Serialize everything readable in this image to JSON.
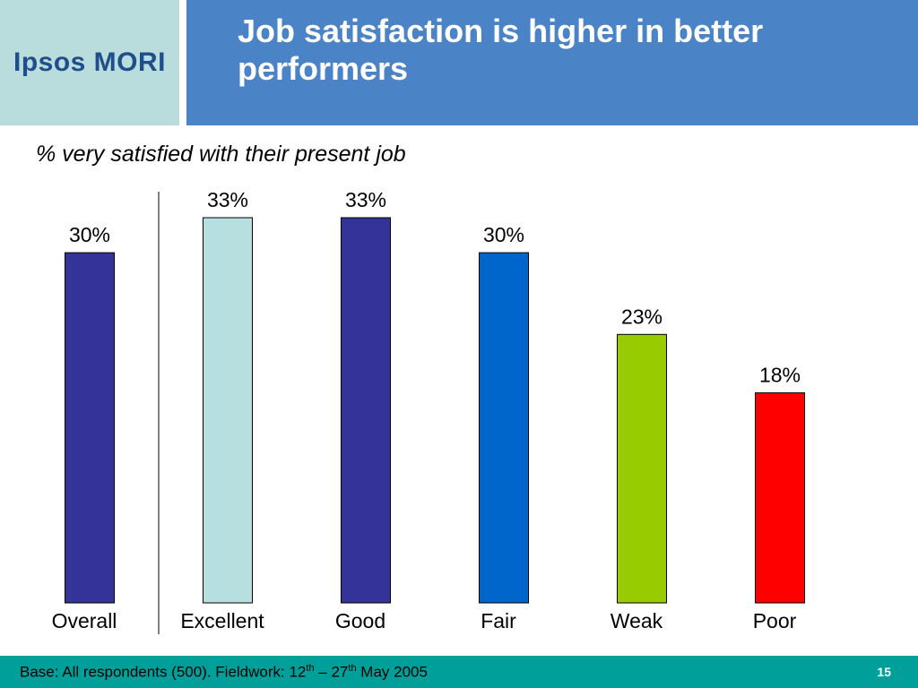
{
  "logo": {
    "text": "Ipsos MORI"
  },
  "header": {
    "title": "Job satisfaction is higher in better performers"
  },
  "chart_data": {
    "type": "bar",
    "subtitle": "% very satisfied with their present job",
    "categories": [
      "Overall",
      "Excellent",
      "Good",
      "Fair",
      "Weak",
      "Poor"
    ],
    "values": [
      30,
      33,
      33,
      30,
      23,
      18
    ],
    "value_labels": [
      "30%",
      "33%",
      "33%",
      "30%",
      "23%",
      "18%"
    ],
    "colors": [
      "#333399",
      "#b8dfe0",
      "#333399",
      "#0066cc",
      "#99cc00",
      "#ff0000"
    ],
    "ylim": [
      0,
      33
    ],
    "grid": false,
    "separator_after": "Overall"
  },
  "footer": {
    "base": "Base: All respondents (500). Fieldwork: 12",
    "sup1": "th",
    "dash": " – 27",
    "sup2": "th",
    "end": " May 2005",
    "page": "15"
  }
}
